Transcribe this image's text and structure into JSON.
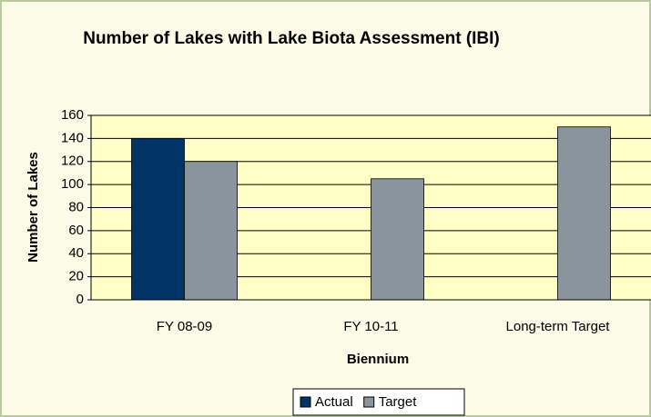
{
  "chart_data": {
    "type": "bar",
    "title": "Number of Lakes with Lake Biota Assessment (IBI)",
    "xlabel": "Biennium",
    "ylabel": "Number of Lakes",
    "categories": [
      "FY 08-09",
      "FY 10-11",
      "Long-term Target"
    ],
    "series": [
      {
        "name": "Actual",
        "color": "#003366",
        "values": [
          140,
          null,
          null
        ]
      },
      {
        "name": "Target",
        "color": "#8a949c",
        "values": [
          120,
          105,
          150
        ]
      }
    ],
    "ylim": [
      0,
      160
    ],
    "yticks": [
      0,
      20,
      40,
      60,
      80,
      100,
      120,
      140,
      160
    ],
    "grid": true,
    "legend": "bottom"
  }
}
